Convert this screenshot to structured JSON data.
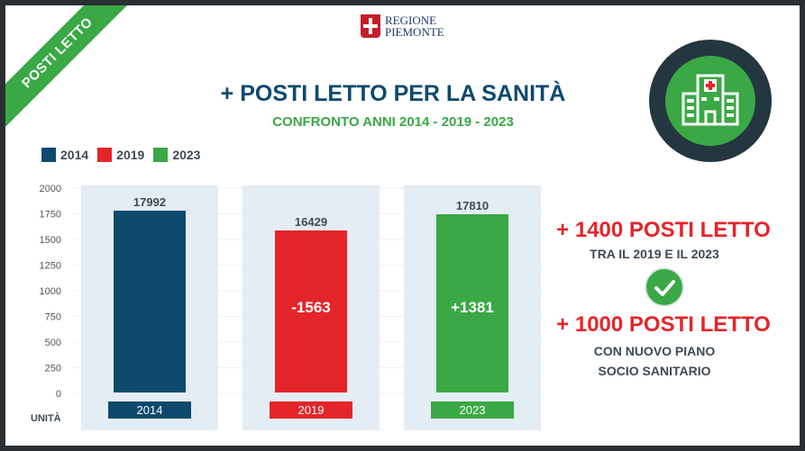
{
  "ribbon": {
    "label": "POSTI LETTO"
  },
  "logo": {
    "line1": "REGIONE",
    "line2": "PIEMONTE"
  },
  "header": {
    "title": "+ POSTI LETTO PER LA SANITÀ",
    "subtitle": "CONFRONTO ANNI 2014 - 2019 - 2023"
  },
  "legend": [
    {
      "label": "2014",
      "color": "#0d4a6e"
    },
    {
      "label": "2019",
      "color": "#e4252a"
    },
    {
      "label": "2023",
      "color": "#3aa845"
    }
  ],
  "chart_data": {
    "type": "bar",
    "categories": [
      "2014",
      "2019",
      "2023"
    ],
    "values": [
      17992,
      16429,
      17810
    ],
    "bar_labels": [
      "",
      "-1563",
      "+1381"
    ],
    "colors": [
      "#0d4a6e",
      "#e4252a",
      "#3aa845"
    ],
    "yticks": [
      "2000",
      "1750",
      "1500",
      "1250",
      "1000",
      "750",
      "500",
      "250",
      "0"
    ],
    "ylabel": "UNITÀ",
    "legend_position": "top-left"
  },
  "callouts": {
    "line1": "+ 1400 POSTI LETTO",
    "line2": "TRA IL 2019 E IL 2023",
    "line3": "+ 1000 POSTI LETTO",
    "line4a": "CON NUOVO PIANO",
    "line4b": "SOCIO SANITARIO"
  },
  "icons": {
    "hospital": "hospital-icon",
    "check": "check-icon"
  },
  "colors": {
    "accent_green": "#3aa845",
    "accent_red": "#e4252a",
    "navy": "#0d4a6e"
  }
}
